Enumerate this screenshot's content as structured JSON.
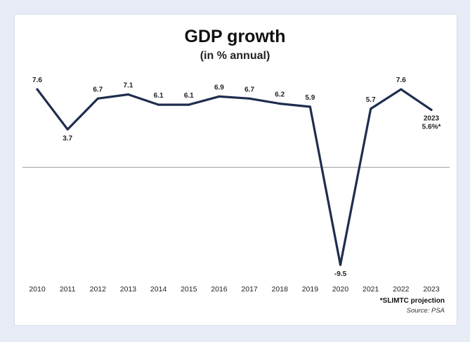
{
  "chart_data": {
    "type": "line",
    "title": "GDP growth",
    "subtitle": "(in % annual)",
    "xlabel": "",
    "ylabel": "",
    "categories": [
      "2010",
      "2011",
      "2012",
      "2013",
      "2014",
      "2015",
      "2016",
      "2017",
      "2018",
      "2019",
      "2020",
      "2021",
      "2022",
      "2023"
    ],
    "series": [
      {
        "values": [
          7.6,
          3.7,
          6.7,
          7.1,
          6.1,
          6.1,
          6.9,
          6.7,
          6.2,
          5.9,
          -9.5,
          5.7,
          7.6,
          5.6
        ]
      }
    ],
    "data_labels": [
      "7.6",
      "3.7",
      "6.7",
      "7.1",
      "6.1",
      "6.1",
      "6.9",
      "6.7",
      "6.2",
      "5.9",
      "-9.5",
      "5.7",
      "7.6",
      "5.6%*"
    ],
    "last_label_year": "2023",
    "ylim": [
      -11,
      9.5
    ],
    "grid": false,
    "zero_line": true,
    "line_color": "#1f2d4e",
    "zero_line_color": "#9a9a9a",
    "footnote": "*SLIMTC projection",
    "source": "Source: PSA"
  }
}
